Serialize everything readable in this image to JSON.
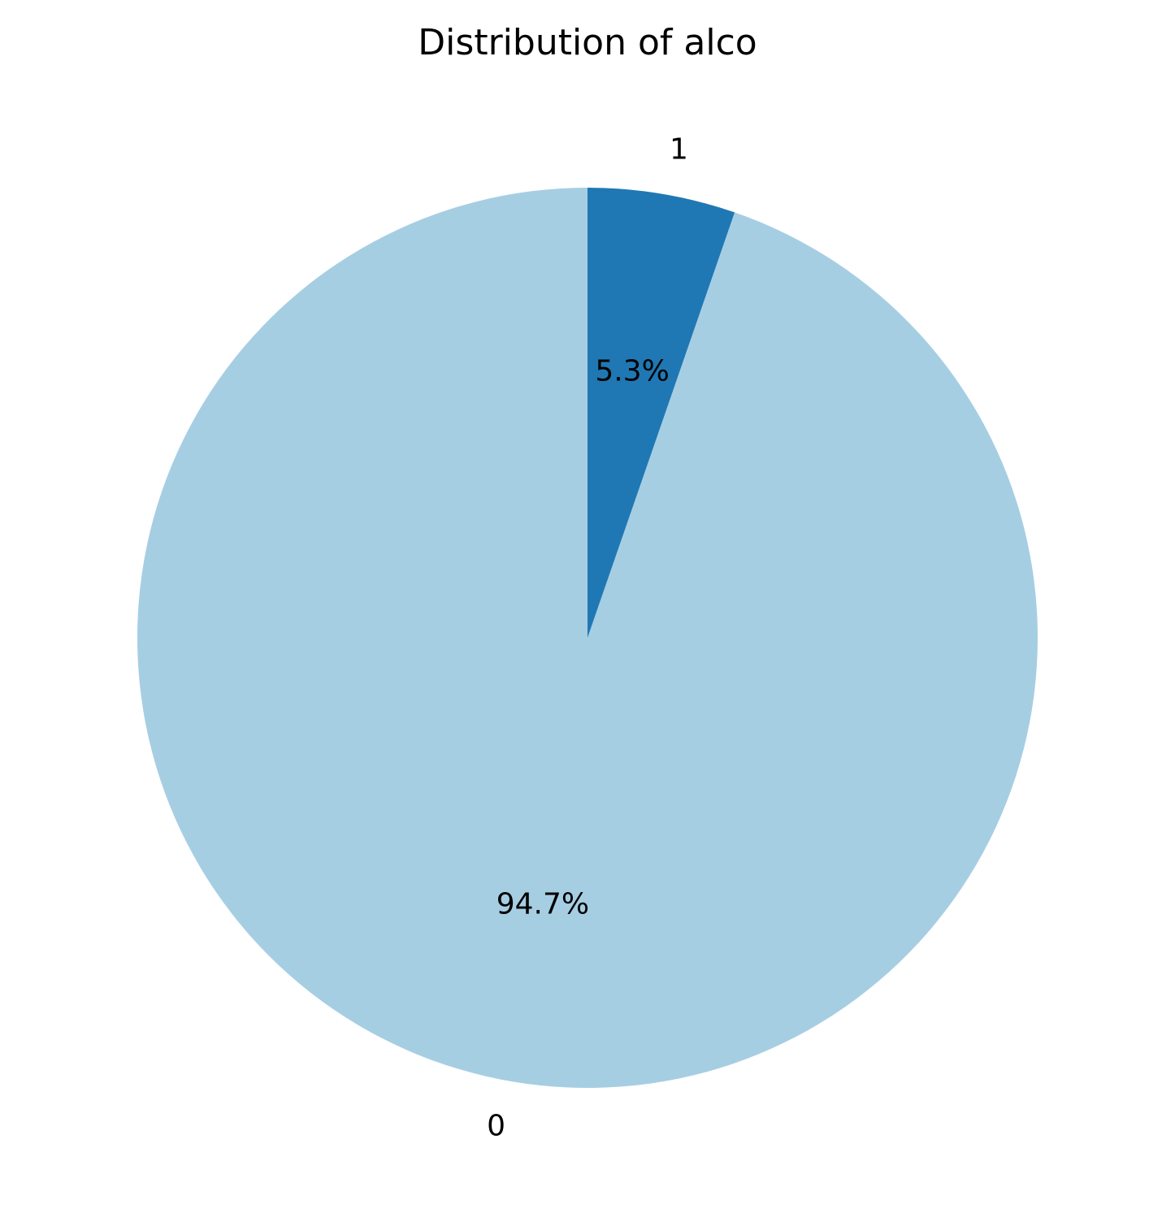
{
  "chart_data": {
    "type": "pie",
    "title": "Distribution of alco",
    "categories": [
      "0",
      "1"
    ],
    "values": [
      94.7,
      5.3
    ],
    "value_labels": [
      "94.7%",
      "5.3%"
    ],
    "colors": [
      "#a6cee3",
      "#1f78b4"
    ],
    "start_angle_deg": 90,
    "direction": "counterclockwise",
    "legend": "none"
  }
}
